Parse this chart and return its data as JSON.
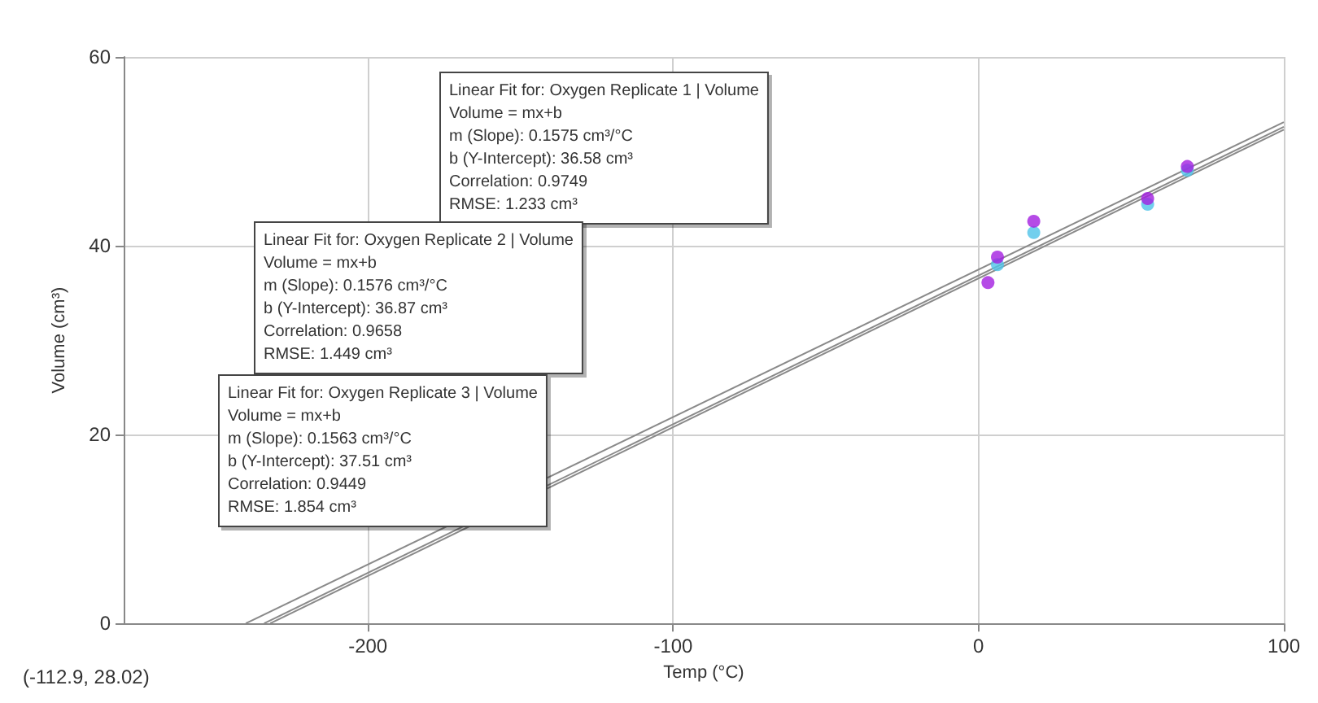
{
  "chart_data": {
    "type": "scatter",
    "xlabel": "Temp (°C)",
    "ylabel": "Volume (cm³)",
    "xlim": [
      -280,
      100
    ],
    "xticks": [
      -200,
      -100,
      0,
      100
    ],
    "ylim": [
      0,
      60
    ],
    "yticks": [
      0,
      20,
      40,
      60
    ],
    "grid": true,
    "marker": "circle",
    "series": [
      {
        "color": "#a21ee0",
        "x": [
          3.1,
          6.2,
          18.1,
          55.4,
          68.4
        ],
        "values": [
          36.1,
          38.8,
          42.6,
          45.0,
          48.4
        ]
      },
      {
        "color": "#4fc3e8",
        "x": [
          6.2,
          18.1,
          55.4,
          68.4
        ],
        "values": [
          38.0,
          41.4,
          44.4,
          48.0
        ]
      },
      {
        "type": "line",
        "marker": "none",
        "color": "#8a8a8a",
        "x": [
          -232,
          100
        ],
        "values": [
          0,
          52.3
        ]
      },
      {
        "type": "line",
        "marker": "none",
        "color": "#8a8a8a",
        "x": [
          -234,
          100
        ],
        "values": [
          0,
          52.6
        ]
      },
      {
        "type": "line",
        "marker": "none",
        "color": "#8a8a8a",
        "x": [
          -240,
          100
        ],
        "values": [
          0,
          53.1
        ]
      }
    ],
    "annotations": [
      "Linear Fit for: Oxygen Replicate 1 | Volume\nVolume = mx+b\nm (Slope): 0.1575 cm³/°C\nb (Y-Intercept): 36.58 cm³\nCorrelation: 0.9749\nRMSE: 1.233 cm³",
      "Linear Fit for: Oxygen Replicate 2 | Volume\nVolume = mx+b\nm (Slope): 0.1576 cm³/°C\nb (Y-Intercept): 36.87 cm³\nCorrelation: 0.9658\nRMSE: 1.449 cm³",
      "Linear Fit for: Oxygen Replicate 3 | Volume\nVolume = mx+b\nm (Slope): 0.1563 cm³/°C\nb (Y-Intercept): 37.51 cm³\nCorrelation: 0.9449\nRMSE: 1.854 cm³",
      "(-112.9, 28.02)"
    ]
  }
}
